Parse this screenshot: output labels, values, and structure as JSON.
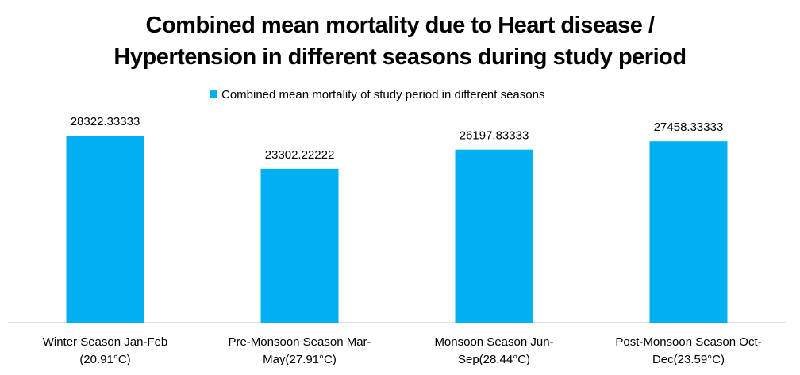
{
  "chart_data": {
    "type": "bar",
    "title": "Combined mean mortality due to Heart disease /\nHypertension in different seasons during study period",
    "categories": [
      "Winter Season Jan-Feb\n(20.91°C)",
      "Pre-Monsoon Season Mar-\nMay(27.91°C)",
      "Monsoon Season Jun-\nSep(28.44°C)",
      "Post-Monsoon Season Oct-\nDec(23.59°C)"
    ],
    "series": [
      {
        "name": "Combined mean mortality of study period in different seasons",
        "color": "#00b0f0",
        "values": [
          28322.33333,
          23302.22222,
          26197.83333,
          27458.33333
        ]
      }
    ],
    "ylim": [
      0,
      30000
    ],
    "legend": "top"
  }
}
